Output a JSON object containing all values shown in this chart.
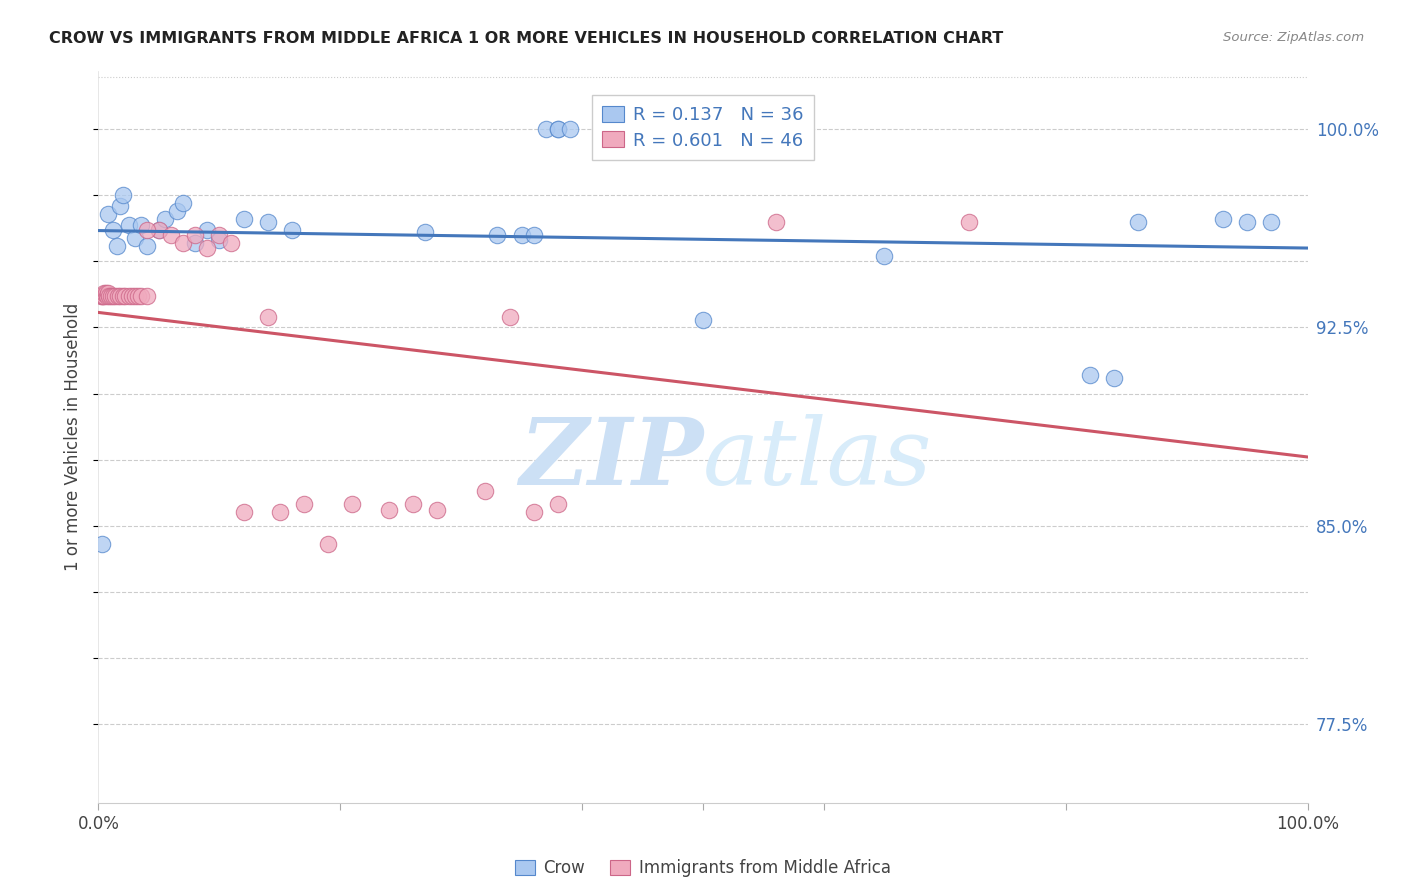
{
  "title": "CROW VS IMMIGRANTS FROM MIDDLE AFRICA 1 OR MORE VEHICLES IN HOUSEHOLD CORRELATION CHART",
  "source": "Source: ZipAtlas.com",
  "ylabel": "1 or more Vehicles in Household",
  "xlim": [
    0.0,
    1.0
  ],
  "ylim": [
    0.745,
    1.022
  ],
  "yticks": [
    0.775,
    0.8,
    0.825,
    0.85,
    0.875,
    0.9,
    0.925,
    0.95,
    0.975,
    1.0
  ],
  "ytick_labels": [
    "77.5%",
    "",
    "",
    "85.0%",
    "",
    "",
    "92.5%",
    "",
    "",
    "100.0%"
  ],
  "blue_color": "#aac8f0",
  "pink_color": "#f0aabe",
  "blue_edge_color": "#5588cc",
  "pink_edge_color": "#cc6688",
  "blue_line_color": "#4477bb",
  "pink_line_color": "#cc5566",
  "watermark_color": "#cce0f5",
  "legend_r_n_color": "#4477bb",
  "blue_r": "0.137",
  "blue_n": "36",
  "pink_r": "0.601",
  "pink_n": "46",
  "blue_scatter_x": [
    0.003,
    0.008,
    0.012,
    0.015,
    0.018,
    0.02,
    0.025,
    0.03,
    0.035,
    0.04,
    0.05,
    0.055,
    0.065,
    0.07,
    0.08,
    0.09,
    0.1,
    0.12,
    0.14,
    0.16,
    0.27,
    0.33,
    0.35,
    0.36,
    0.37,
    0.38,
    0.38,
    0.39,
    0.5,
    0.65,
    0.82,
    0.84,
    0.86,
    0.93,
    0.95,
    0.97
  ],
  "blue_scatter_y": [
    0.843,
    0.968,
    0.962,
    0.956,
    0.971,
    0.975,
    0.964,
    0.959,
    0.964,
    0.956,
    0.962,
    0.966,
    0.969,
    0.972,
    0.957,
    0.962,
    0.958,
    0.966,
    0.965,
    0.962,
    0.961,
    0.96,
    0.96,
    0.96,
    1.0,
    1.0,
    1.0,
    1.0,
    0.928,
    0.952,
    0.907,
    0.906,
    0.965,
    0.966,
    0.965,
    0.965
  ],
  "pink_scatter_x": [
    0.002,
    0.003,
    0.004,
    0.005,
    0.005,
    0.006,
    0.007,
    0.008,
    0.009,
    0.01,
    0.012,
    0.014,
    0.016,
    0.018,
    0.02,
    0.022,
    0.025,
    0.028,
    0.03,
    0.033,
    0.035,
    0.04,
    0.05,
    0.06,
    0.07,
    0.08,
    0.09,
    0.1,
    0.11,
    0.12,
    0.14,
    0.15,
    0.17,
    0.19,
    0.21,
    0.24,
    0.26,
    0.28,
    0.32,
    0.34,
    0.36,
    0.38,
    0.04,
    0.44,
    0.56,
    0.72
  ],
  "pink_scatter_y": [
    0.937,
    0.937,
    0.937,
    0.937,
    0.938,
    0.938,
    0.937,
    0.938,
    0.937,
    0.937,
    0.937,
    0.937,
    0.937,
    0.937,
    0.937,
    0.937,
    0.937,
    0.937,
    0.937,
    0.937,
    0.937,
    0.937,
    0.962,
    0.96,
    0.957,
    0.96,
    0.955,
    0.96,
    0.957,
    0.855,
    0.929,
    0.855,
    0.858,
    0.843,
    0.858,
    0.856,
    0.858,
    0.856,
    0.863,
    0.929,
    0.855,
    0.858,
    0.962,
    1.0,
    0.965,
    0.965
  ]
}
